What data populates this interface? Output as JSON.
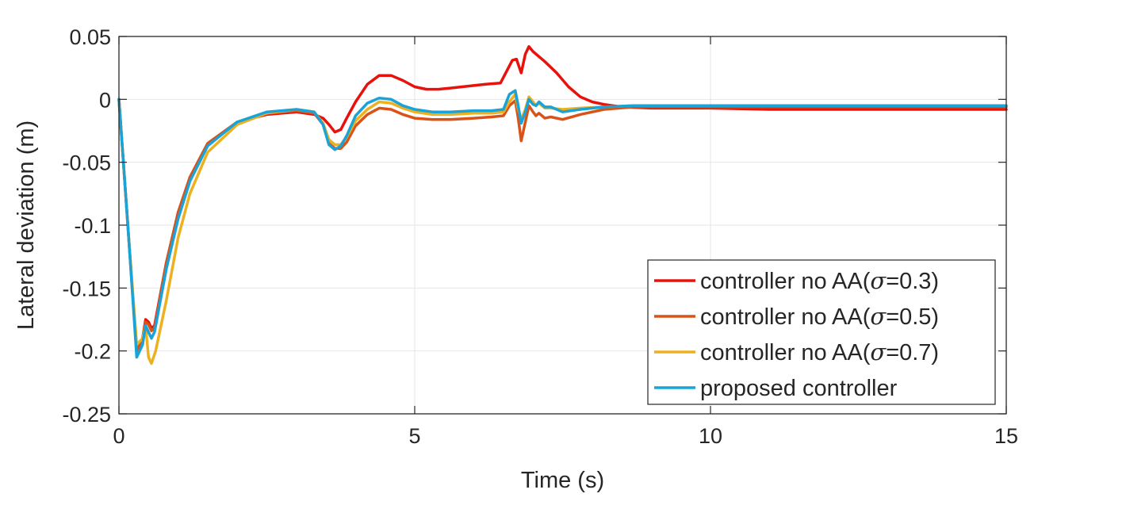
{
  "chart_data": {
    "type": "line",
    "xlabel": "Time (s)",
    "ylabel": "Lateral deviation (m)",
    "xlim": [
      0,
      15
    ],
    "ylim": [
      -0.25,
      0.05
    ],
    "xticks": [
      0,
      5,
      10,
      15
    ],
    "xtick_labels": [
      "0",
      "5",
      "10",
      "15"
    ],
    "yticks": [
      0.05,
      0,
      -0.05,
      -0.1,
      -0.15,
      -0.2,
      -0.25
    ],
    "ytick_labels": [
      "0.05",
      "0",
      "-0.05",
      "-0.1",
      "-0.15",
      "-0.2",
      "-0.25"
    ],
    "grid": true,
    "legend_position": "bottom-right",
    "series": [
      {
        "name": "controller no AA(σ=0.3)",
        "legend_prefix": "controller no AA(",
        "legend_symbol": "σ",
        "legend_suffix": "=0.3)",
        "color": "#e8120c",
        "x": [
          0,
          0.15,
          0.3,
          0.4,
          0.45,
          0.5,
          0.55,
          0.6,
          0.8,
          1.0,
          1.2,
          1.5,
          2.0,
          2.5,
          3.0,
          3.3,
          3.45,
          3.55,
          3.65,
          3.75,
          3.85,
          4.0,
          4.2,
          4.4,
          4.6,
          4.8,
          5.0,
          5.2,
          5.4,
          5.6,
          5.8,
          6.0,
          6.2,
          6.45,
          6.55,
          6.65,
          6.72,
          6.8,
          6.87,
          6.93,
          7.0,
          7.2,
          7.4,
          7.6,
          7.8,
          8.0,
          8.2,
          8.5,
          9.0,
          10,
          11,
          12,
          13,
          14,
          15
        ],
        "y": [
          0,
          -0.1,
          -0.2,
          -0.19,
          -0.175,
          -0.177,
          -0.182,
          -0.18,
          -0.13,
          -0.09,
          -0.062,
          -0.035,
          -0.018,
          -0.012,
          -0.01,
          -0.012,
          -0.015,
          -0.02,
          -0.026,
          -0.024,
          -0.015,
          -0.002,
          0.012,
          0.019,
          0.019,
          0.015,
          0.01,
          0.008,
          0.008,
          0.009,
          0.01,
          0.011,
          0.012,
          0.013,
          0.022,
          0.031,
          0.032,
          0.021,
          0.036,
          0.042,
          0.038,
          0.03,
          0.021,
          0.01,
          0.002,
          -0.002,
          -0.004,
          -0.006,
          -0.007,
          -0.007,
          -0.008,
          -0.008,
          -0.008,
          -0.008,
          -0.008
        ]
      },
      {
        "name": "controller no AA(σ=0.5)",
        "legend_prefix": "controller no AA(",
        "legend_symbol": "σ",
        "legend_suffix": "=0.5)",
        "color": "#d95319",
        "x": [
          0,
          0.15,
          0.3,
          0.4,
          0.45,
          0.5,
          0.55,
          0.6,
          0.8,
          1.0,
          1.2,
          1.5,
          2.0,
          2.5,
          3.0,
          3.3,
          3.45,
          3.55,
          3.65,
          3.75,
          3.85,
          4.0,
          4.2,
          4.4,
          4.6,
          4.8,
          5.0,
          5.3,
          5.6,
          6.0,
          6.3,
          6.5,
          6.6,
          6.7,
          6.75,
          6.8,
          6.87,
          6.93,
          7.0,
          7.05,
          7.1,
          7.2,
          7.3,
          7.5,
          7.8,
          8.2,
          8.7,
          9.5,
          10,
          11,
          12,
          13,
          14,
          15
        ],
        "y": [
          0,
          -0.1,
          -0.2,
          -0.19,
          -0.177,
          -0.179,
          -0.184,
          -0.182,
          -0.13,
          -0.09,
          -0.062,
          -0.035,
          -0.018,
          -0.011,
          -0.009,
          -0.011,
          -0.02,
          -0.035,
          -0.039,
          -0.039,
          -0.034,
          -0.021,
          -0.012,
          -0.007,
          -0.008,
          -0.012,
          -0.015,
          -0.016,
          -0.016,
          -0.015,
          -0.014,
          -0.013,
          -0.005,
          -0.001,
          -0.015,
          -0.033,
          -0.018,
          -0.005,
          -0.01,
          -0.013,
          -0.011,
          -0.015,
          -0.014,
          -0.016,
          -0.012,
          -0.008,
          -0.006,
          -0.006,
          -0.006,
          -0.006,
          -0.006,
          -0.006,
          -0.006,
          -0.006
        ]
      },
      {
        "name": "controller no AA(σ=0.7)",
        "legend_prefix": "controller no AA(",
        "legend_symbol": "σ",
        "legend_suffix": "=0.7)",
        "color": "#edb120",
        "x": [
          0,
          0.15,
          0.3,
          0.4,
          0.45,
          0.5,
          0.55,
          0.62,
          0.8,
          1.0,
          1.2,
          1.5,
          2.0,
          2.5,
          3.0,
          3.3,
          3.45,
          3.55,
          3.65,
          3.75,
          3.85,
          4.0,
          4.2,
          4.4,
          4.6,
          4.8,
          5.0,
          5.3,
          5.6,
          6.0,
          6.3,
          6.5,
          6.6,
          6.7,
          6.75,
          6.8,
          6.87,
          6.93,
          7.0,
          7.05,
          7.1,
          7.2,
          7.3,
          7.5,
          7.8,
          8.2,
          8.7,
          9.5,
          10,
          11,
          12,
          13,
          14,
          15
        ],
        "y": [
          0,
          -0.1,
          -0.195,
          -0.19,
          -0.18,
          -0.205,
          -0.21,
          -0.2,
          -0.16,
          -0.11,
          -0.075,
          -0.042,
          -0.02,
          -0.011,
          -0.008,
          -0.01,
          -0.019,
          -0.032,
          -0.036,
          -0.036,
          -0.03,
          -0.017,
          -0.008,
          -0.002,
          -0.003,
          -0.007,
          -0.01,
          -0.012,
          -0.012,
          -0.011,
          -0.011,
          -0.01,
          -0.002,
          0.004,
          -0.008,
          -0.016,
          -0.008,
          0.002,
          -0.002,
          -0.005,
          -0.003,
          -0.007,
          -0.007,
          -0.008,
          -0.007,
          -0.006,
          -0.005,
          -0.005,
          -0.005,
          -0.005,
          -0.005,
          -0.005,
          -0.005,
          -0.005
        ]
      },
      {
        "name": "proposed controller",
        "legend_prefix": "proposed controller",
        "legend_symbol": "",
        "legend_suffix": "",
        "color": "#1aa3d6",
        "x": [
          0,
          0.15,
          0.3,
          0.4,
          0.45,
          0.5,
          0.55,
          0.6,
          0.8,
          1.0,
          1.2,
          1.5,
          2.0,
          2.5,
          3.0,
          3.3,
          3.45,
          3.55,
          3.65,
          3.75,
          3.85,
          4.0,
          4.2,
          4.4,
          4.6,
          4.8,
          5.0,
          5.3,
          5.6,
          6.0,
          6.3,
          6.5,
          6.6,
          6.7,
          6.75,
          6.8,
          6.87,
          6.93,
          7.0,
          7.05,
          7.1,
          7.2,
          7.3,
          7.5,
          7.8,
          8.2,
          8.7,
          9.5,
          10,
          11,
          12,
          13,
          14,
          15
        ],
        "y": [
          0,
          -0.1,
          -0.205,
          -0.195,
          -0.18,
          -0.185,
          -0.19,
          -0.185,
          -0.135,
          -0.095,
          -0.065,
          -0.037,
          -0.018,
          -0.01,
          -0.008,
          -0.01,
          -0.02,
          -0.036,
          -0.04,
          -0.037,
          -0.029,
          -0.013,
          -0.003,
          0.001,
          0.0,
          -0.005,
          -0.008,
          -0.01,
          -0.01,
          -0.009,
          -0.009,
          -0.008,
          0.004,
          0.007,
          -0.005,
          -0.019,
          -0.01,
          0.0,
          -0.004,
          -0.005,
          -0.002,
          -0.006,
          -0.006,
          -0.01,
          -0.008,
          -0.006,
          -0.005,
          -0.005,
          -0.005,
          -0.005,
          -0.005,
          -0.005,
          -0.005,
          -0.005
        ]
      }
    ]
  }
}
